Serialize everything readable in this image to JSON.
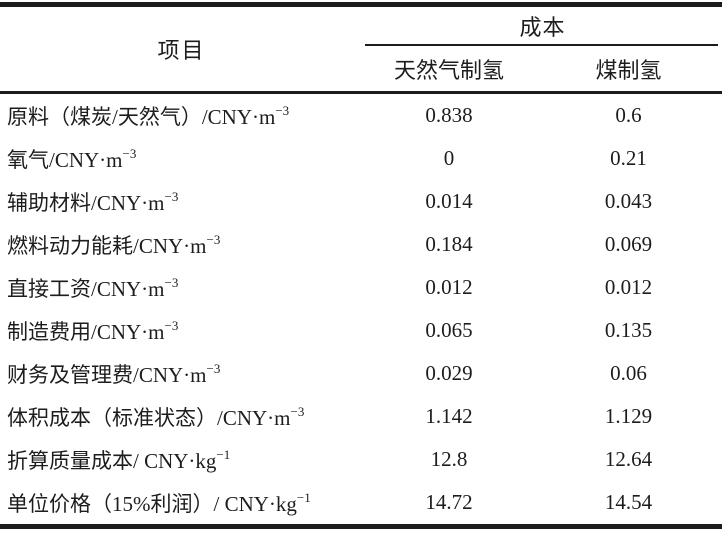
{
  "table": {
    "colors": {
      "text": "#1d1d1d",
      "rule": "#1c1c1c",
      "background": "#ffffff"
    },
    "header": {
      "item": "项目",
      "cost_group": "成本",
      "natural_gas": "天然气制氢",
      "coal": "煤制氢"
    },
    "rows": [
      {
        "label": "原料（煤炭/天然气）/CNY·m",
        "sup": "−3",
        "natural_gas": "0.838",
        "coal": "0.6"
      },
      {
        "label": "氧气/CNY·m",
        "sup": "−3",
        "natural_gas": "0",
        "coal": "0.21"
      },
      {
        "label": "辅助材料/CNY·m",
        "sup": "−3",
        "natural_gas": "0.014",
        "coal": "0.043"
      },
      {
        "label": "燃料动力能耗/CNY·m",
        "sup": "−3",
        "natural_gas": "0.184",
        "coal": "0.069"
      },
      {
        "label": "直接工资/CNY·m",
        "sup": "−3",
        "natural_gas": "0.012",
        "coal": "0.012"
      },
      {
        "label": "制造费用/CNY·m",
        "sup": "−3",
        "natural_gas": "0.065",
        "coal": "0.135"
      },
      {
        "label": "财务及管理费/CNY·m",
        "sup": "−3",
        "natural_gas": "0.029",
        "coal": "0.06"
      },
      {
        "label": "体积成本（标准状态）/CNY·m",
        "sup": "−3",
        "natural_gas": "1.142",
        "coal": "1.129"
      },
      {
        "label": "折算质量成本/ CNY·kg",
        "sup": "−1",
        "natural_gas": "12.8",
        "coal": "12.64"
      },
      {
        "label": "单位价格（15%利润）/ CNY·kg",
        "sup": "−1",
        "natural_gas": "14.72",
        "coal": "14.54"
      }
    ]
  }
}
